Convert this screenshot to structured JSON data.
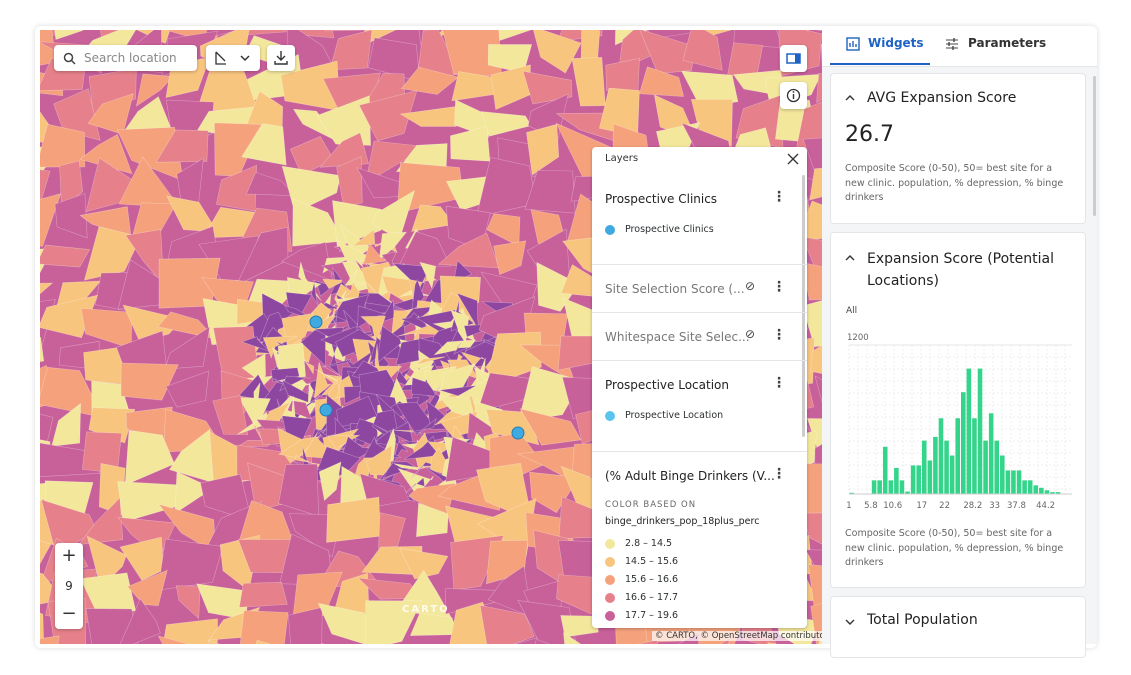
{
  "search_placeholder": "Search location",
  "map": {
    "zoom": "9",
    "attribution": "© CARTO, © OpenStreetMap contributors",
    "watermark": "CARTO"
  },
  "layers_panel": {
    "title": "Layers",
    "layers": [
      {
        "name": "Prospective Clinics",
        "legend": "Prospective Clinics",
        "color": "#3fa9e0"
      },
      {
        "name": "Site Selection Score (..."
      },
      {
        "name": "Whitespace Site Selec..."
      },
      {
        "name": "Prospective Location",
        "legend": "Prospective Location",
        "color": "#5bc4ee"
      },
      {
        "name": "(% Adult Binge Drinkers (V...",
        "color_based_on": "COLOR BASED ON",
        "field": "binge_drinkers_pop_18plus_perc",
        "ranges": [
          {
            "label": "2.8 – 14.5",
            "color": "#f3e79b"
          },
          {
            "label": "14.5 – 15.6",
            "color": "#f8c57f"
          },
          {
            "label": "15.6 – 16.6",
            "color": "#f5a27c"
          },
          {
            "label": "16.6 – 17.7",
            "color": "#e6808a"
          },
          {
            "label": "17.7 – 19.6",
            "color": "#c8609a"
          }
        ]
      }
    ]
  },
  "tabs": [
    "Widgets",
    "Parameters"
  ],
  "widgets": {
    "avg": {
      "title": "AVG Expansion Score",
      "value": "26.7",
      "description": "Composite Score (0-50), 50= best site for a new clinic. population, % depression, % binge drinkers"
    },
    "histogram": {
      "title": "Expansion Score (Potential Locations)",
      "filter": "All",
      "description": "Composite Score (0-50), 50= best site for a new clinic. population, % depression, % binge drinkers",
      "chart_data": {
        "type": "histogram",
        "color": "#34d58b",
        "xlim": [
          1,
          50
        ],
        "ylim": [
          0,
          1200
        ],
        "yticks": [
          1200
        ],
        "xticks": [
          1,
          5.8,
          10.6,
          17,
          22,
          28.2,
          33,
          37.8,
          44.2
        ],
        "values": [
          10,
          0,
          0,
          0,
          110,
          110,
          380,
          110,
          210,
          110,
          20,
          230,
          230,
          430,
          270,
          460,
          610,
          430,
          310,
          610,
          820,
          1010,
          610,
          1010,
          430,
          650,
          430,
          310,
          190,
          190,
          190,
          110,
          110,
          70,
          50,
          30,
          15,
          15,
          0,
          0
        ]
      }
    },
    "population": {
      "title": "Total Population"
    }
  }
}
